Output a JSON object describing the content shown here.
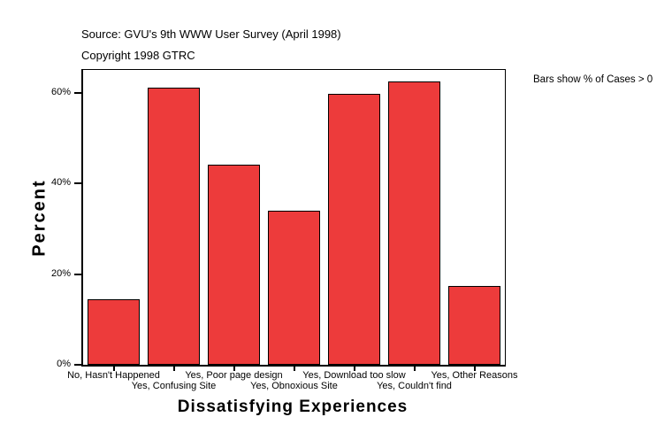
{
  "header": {
    "source_line": "Source: GVU's 9th WWW User Survey (April 1998)",
    "copyright_line": "Copyright 1998 GTRC"
  },
  "annotation": {
    "text": "Bars show % of Cases > 0"
  },
  "chart_data": {
    "type": "bar",
    "title": "",
    "xlabel": "Dissatisfying Experiences",
    "ylabel": "Percent",
    "categories": [
      "No, Hasn't Happened",
      "Yes, Confusing Site",
      "Yes, Poor page design",
      "Yes, Obnoxious Site",
      "Yes, Download too slow",
      "Yes, Couldn't find",
      "Yes, Other Reasons"
    ],
    "values": [
      14.4,
      61.1,
      44.2,
      33.9,
      59.8,
      62.4,
      17.3
    ],
    "ylim": [
      0,
      65
    ],
    "yticks": [
      0,
      20,
      40,
      60
    ],
    "ytick_labels": [
      "0%",
      "20%",
      "40%",
      "60%"
    ],
    "grid": false,
    "legend": null,
    "bar_color": "#ED3B3B",
    "bar_border_color": "#000000",
    "axis_color": "#000000",
    "background_color": "#FFFFFF"
  }
}
